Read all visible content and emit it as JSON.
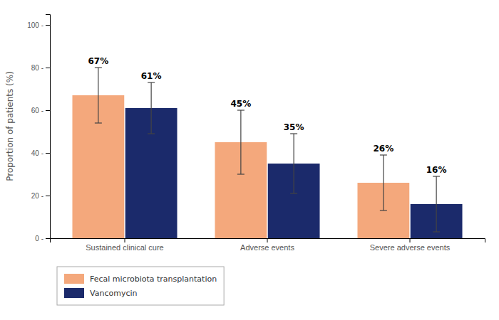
{
  "chart_data": {
    "type": "bar",
    "categories": [
      "Sustained clinical cure",
      "Adverse events",
      "Severe adverse events"
    ],
    "series": [
      {
        "name": "Fecal microbiota transplantation",
        "color": "#F4A87C",
        "values": [
          67,
          45,
          26
        ],
        "errors": [
          13,
          15,
          13
        ],
        "value_labels": [
          "67%",
          "45%",
          "26%"
        ]
      },
      {
        "name": "Vancomycin",
        "color": "#1B2A6B",
        "values": [
          61,
          35,
          16
        ],
        "errors": [
          12,
          14,
          13
        ],
        "value_labels": [
          "61%",
          "35%",
          "16%"
        ]
      }
    ],
    "ylabel": "Proportion of patients (%)",
    "ylim": [
      0,
      105
    ],
    "yticks": [
      {
        "value": 0,
        "label": "0 -"
      },
      {
        "value": 20,
        "label": "20 -"
      },
      {
        "value": 40,
        "label": "40 -"
      },
      {
        "value": 60,
        "label": "60 -"
      },
      {
        "value": 80,
        "label": "80 -"
      },
      {
        "value": 100,
        "label": "100 -"
      }
    ],
    "data_labels": true,
    "grid": false,
    "legend": "lower left"
  }
}
